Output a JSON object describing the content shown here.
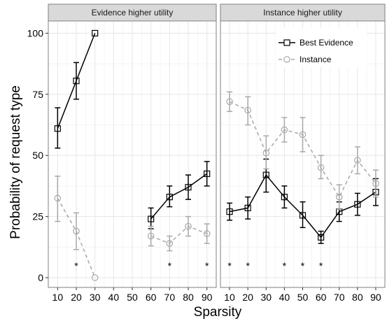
{
  "chart_data": {
    "type": "line",
    "ylabel": "Probability of request type",
    "xlabel": "Sparsity",
    "x_ticks": [
      10,
      20,
      30,
      40,
      50,
      60,
      70,
      80,
      90
    ],
    "y_ticks": [
      0,
      25,
      50,
      75,
      100
    ],
    "xlim": [
      5,
      95
    ],
    "ylim": [
      -4,
      105
    ],
    "grid": true,
    "legend": {
      "placement": "top-right",
      "panel": "Instance higher utility"
    },
    "colors": {
      "best_evidence": "#000000",
      "instance": "#a8a8a8",
      "strip": "#d9d9d9",
      "grid_major": "#e6e6e6",
      "grid_minor": "#f2f2f2"
    },
    "panels": [
      {
        "strip_label": "Evidence higher utility",
        "series": [
          {
            "name": "Best Evidence",
            "style": "solid",
            "marker": "square",
            "segments": [
              [
                {
                  "x": 10,
                  "y": 61,
                  "lo": 53,
                  "hi": 69.5
                },
                {
                  "x": 20,
                  "y": 80.5,
                  "lo": 73,
                  "hi": 88
                },
                {
                  "x": 30,
                  "y": 100,
                  "lo": 100,
                  "hi": 100
                }
              ],
              [
                {
                  "x": 60,
                  "y": 24,
                  "lo": 20,
                  "hi": 28.5
                },
                {
                  "x": 70,
                  "y": 33,
                  "lo": 29,
                  "hi": 37.5
                },
                {
                  "x": 80,
                  "y": 37,
                  "lo": 32,
                  "hi": 42
                },
                {
                  "x": 90,
                  "y": 42.5,
                  "lo": 37.5,
                  "hi": 47.5
                }
              ]
            ]
          },
          {
            "name": "Instance",
            "style": "dashed",
            "marker": "circle",
            "segments": [
              [
                {
                  "x": 10,
                  "y": 32.5,
                  "lo": 23,
                  "hi": 41.5
                },
                {
                  "x": 20,
                  "y": 19,
                  "lo": 11.5,
                  "hi": 26.5
                },
                {
                  "x": 30,
                  "y": 0,
                  "lo": 0,
                  "hi": 0
                }
              ],
              [
                {
                  "x": 60,
                  "y": 17,
                  "lo": 13,
                  "hi": 21
                },
                {
                  "x": 70,
                  "y": 14,
                  "lo": 11,
                  "hi": 17
                },
                {
                  "x": 80,
                  "y": 21,
                  "lo": 17,
                  "hi": 25
                },
                {
                  "x": 90,
                  "y": 18,
                  "lo": 14,
                  "hi": 22
                }
              ]
            ]
          }
        ],
        "significance_x": [
          20,
          70,
          90
        ],
        "significance_mark": "*"
      },
      {
        "strip_label": "Instance higher utility",
        "series": [
          {
            "name": "Best Evidence",
            "style": "solid",
            "marker": "square",
            "segments": [
              [
                {
                  "x": 10,
                  "y": 27,
                  "lo": 23.5,
                  "hi": 30.5
                },
                {
                  "x": 20,
                  "y": 28.5,
                  "lo": 24,
                  "hi": 33
                },
                {
                  "x": 30,
                  "y": 42,
                  "lo": 35,
                  "hi": 48.5
                },
                {
                  "x": 40,
                  "y": 33,
                  "lo": 28.5,
                  "hi": 37.5
                },
                {
                  "x": 50,
                  "y": 25.5,
                  "lo": 20.5,
                  "hi": 31
                },
                {
                  "x": 60,
                  "y": 16.5,
                  "lo": 14,
                  "hi": 19
                },
                {
                  "x": 70,
                  "y": 27,
                  "lo": 23,
                  "hi": 31
                },
                {
                  "x": 80,
                  "y": 30,
                  "lo": 25.5,
                  "hi": 34.5
                },
                {
                  "x": 90,
                  "y": 35,
                  "lo": 29.5,
                  "hi": 40.5
                }
              ]
            ]
          },
          {
            "name": "Instance",
            "style": "dashed",
            "marker": "circle",
            "segments": [
              [
                {
                  "x": 10,
                  "y": 72,
                  "lo": 68,
                  "hi": 76
                },
                {
                  "x": 20,
                  "y": 68.5,
                  "lo": 62.5,
                  "hi": 74
                },
                {
                  "x": 30,
                  "y": 51,
                  "lo": 44.5,
                  "hi": 58
                },
                {
                  "x": 40,
                  "y": 60.5,
                  "lo": 55.5,
                  "hi": 65.5
                },
                {
                  "x": 50,
                  "y": 58.5,
                  "lo": 51.5,
                  "hi": 65.5
                },
                {
                  "x": 60,
                  "y": 45,
                  "lo": 40.5,
                  "hi": 50
                },
                {
                  "x": 70,
                  "y": 33,
                  "lo": 28,
                  "hi": 38
                },
                {
                  "x": 80,
                  "y": 48,
                  "lo": 42.5,
                  "hi": 53.5
                },
                {
                  "x": 90,
                  "y": 38.5,
                  "lo": 33,
                  "hi": 44
                }
              ]
            ]
          }
        ],
        "significance_x": [
          10,
          20,
          40,
          50,
          60
        ],
        "significance_mark": "*"
      }
    ]
  }
}
